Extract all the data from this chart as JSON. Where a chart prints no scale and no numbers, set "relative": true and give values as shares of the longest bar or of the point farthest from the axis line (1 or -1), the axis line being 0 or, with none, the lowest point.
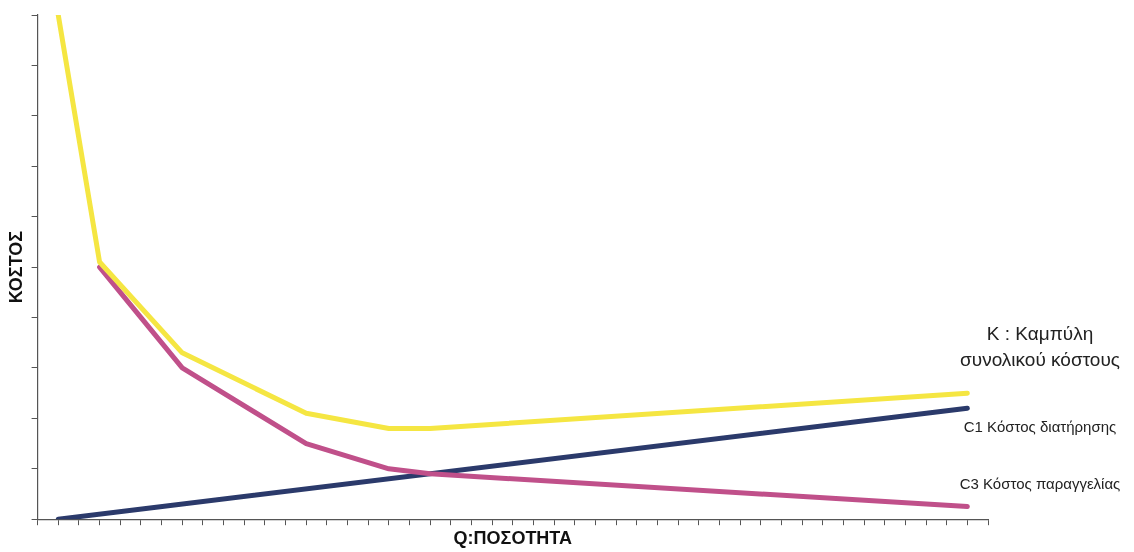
{
  "chart_data": {
    "type": "line",
    "relative": true,
    "xlabel": "Q:ΠΟΣΟΤΗΤΑ",
    "ylabel": "ΚΟΣΤΟΣ",
    "categories": [
      null,
      null,
      null,
      null,
      null,
      null,
      null,
      null,
      null,
      null,
      null,
      null,
      null,
      null,
      null,
      null,
      null,
      null,
      null,
      null,
      null,
      null,
      null,
      null,
      null,
      null,
      null,
      null,
      null,
      null,
      null,
      null,
      null,
      null,
      null,
      null,
      null,
      null,
      null,
      null,
      null,
      null,
      null,
      null,
      null,
      null,
      null
    ],
    "grid": false,
    "legend": false,
    "marker": "none",
    "line_style": "solid",
    "series": [
      {
        "name": "C1 Κόστος διατήρησης",
        "color": "#2b3a6b",
        "values": [
          null,
          0,
          null,
          null,
          null,
          null,
          null,
          null,
          null,
          null,
          null,
          null,
          null,
          null,
          null,
          null,
          null,
          null,
          null,
          null,
          null,
          null,
          null,
          null,
          null,
          null,
          null,
          null,
          null,
          null,
          null,
          null,
          null,
          null,
          null,
          null,
          null,
          null,
          null,
          null,
          null,
          null,
          null,
          null,
          null,
          0.22,
          null
        ]
      },
      {
        "name": "C3 Κόστος παραγγελίας",
        "color": "#c0508a",
        "values": [
          null,
          null,
          null,
          0.5,
          null,
          null,
          null,
          0.3,
          null,
          null,
          null,
          null,
          null,
          0.15,
          null,
          null,
          null,
          0.1,
          null,
          0.09,
          null,
          null,
          null,
          null,
          null,
          null,
          null,
          null,
          null,
          null,
          null,
          null,
          null,
          null,
          null,
          null,
          null,
          null,
          null,
          null,
          null,
          null,
          null,
          null,
          null,
          0.025,
          null
        ]
      },
      {
        "name": "K : Καμπύλη συνολικού κόστους",
        "color": "#f5e642",
        "values": [
          null,
          1.0,
          null,
          0.51,
          null,
          null,
          null,
          0.33,
          null,
          null,
          null,
          null,
          null,
          0.21,
          null,
          null,
          null,
          0.18,
          null,
          0.18,
          null,
          null,
          null,
          null,
          null,
          null,
          null,
          null,
          null,
          null,
          null,
          null,
          null,
          null,
          null,
          null,
          null,
          null,
          null,
          null,
          null,
          null,
          null,
          null,
          null,
          0.25,
          null
        ]
      }
    ]
  }
}
